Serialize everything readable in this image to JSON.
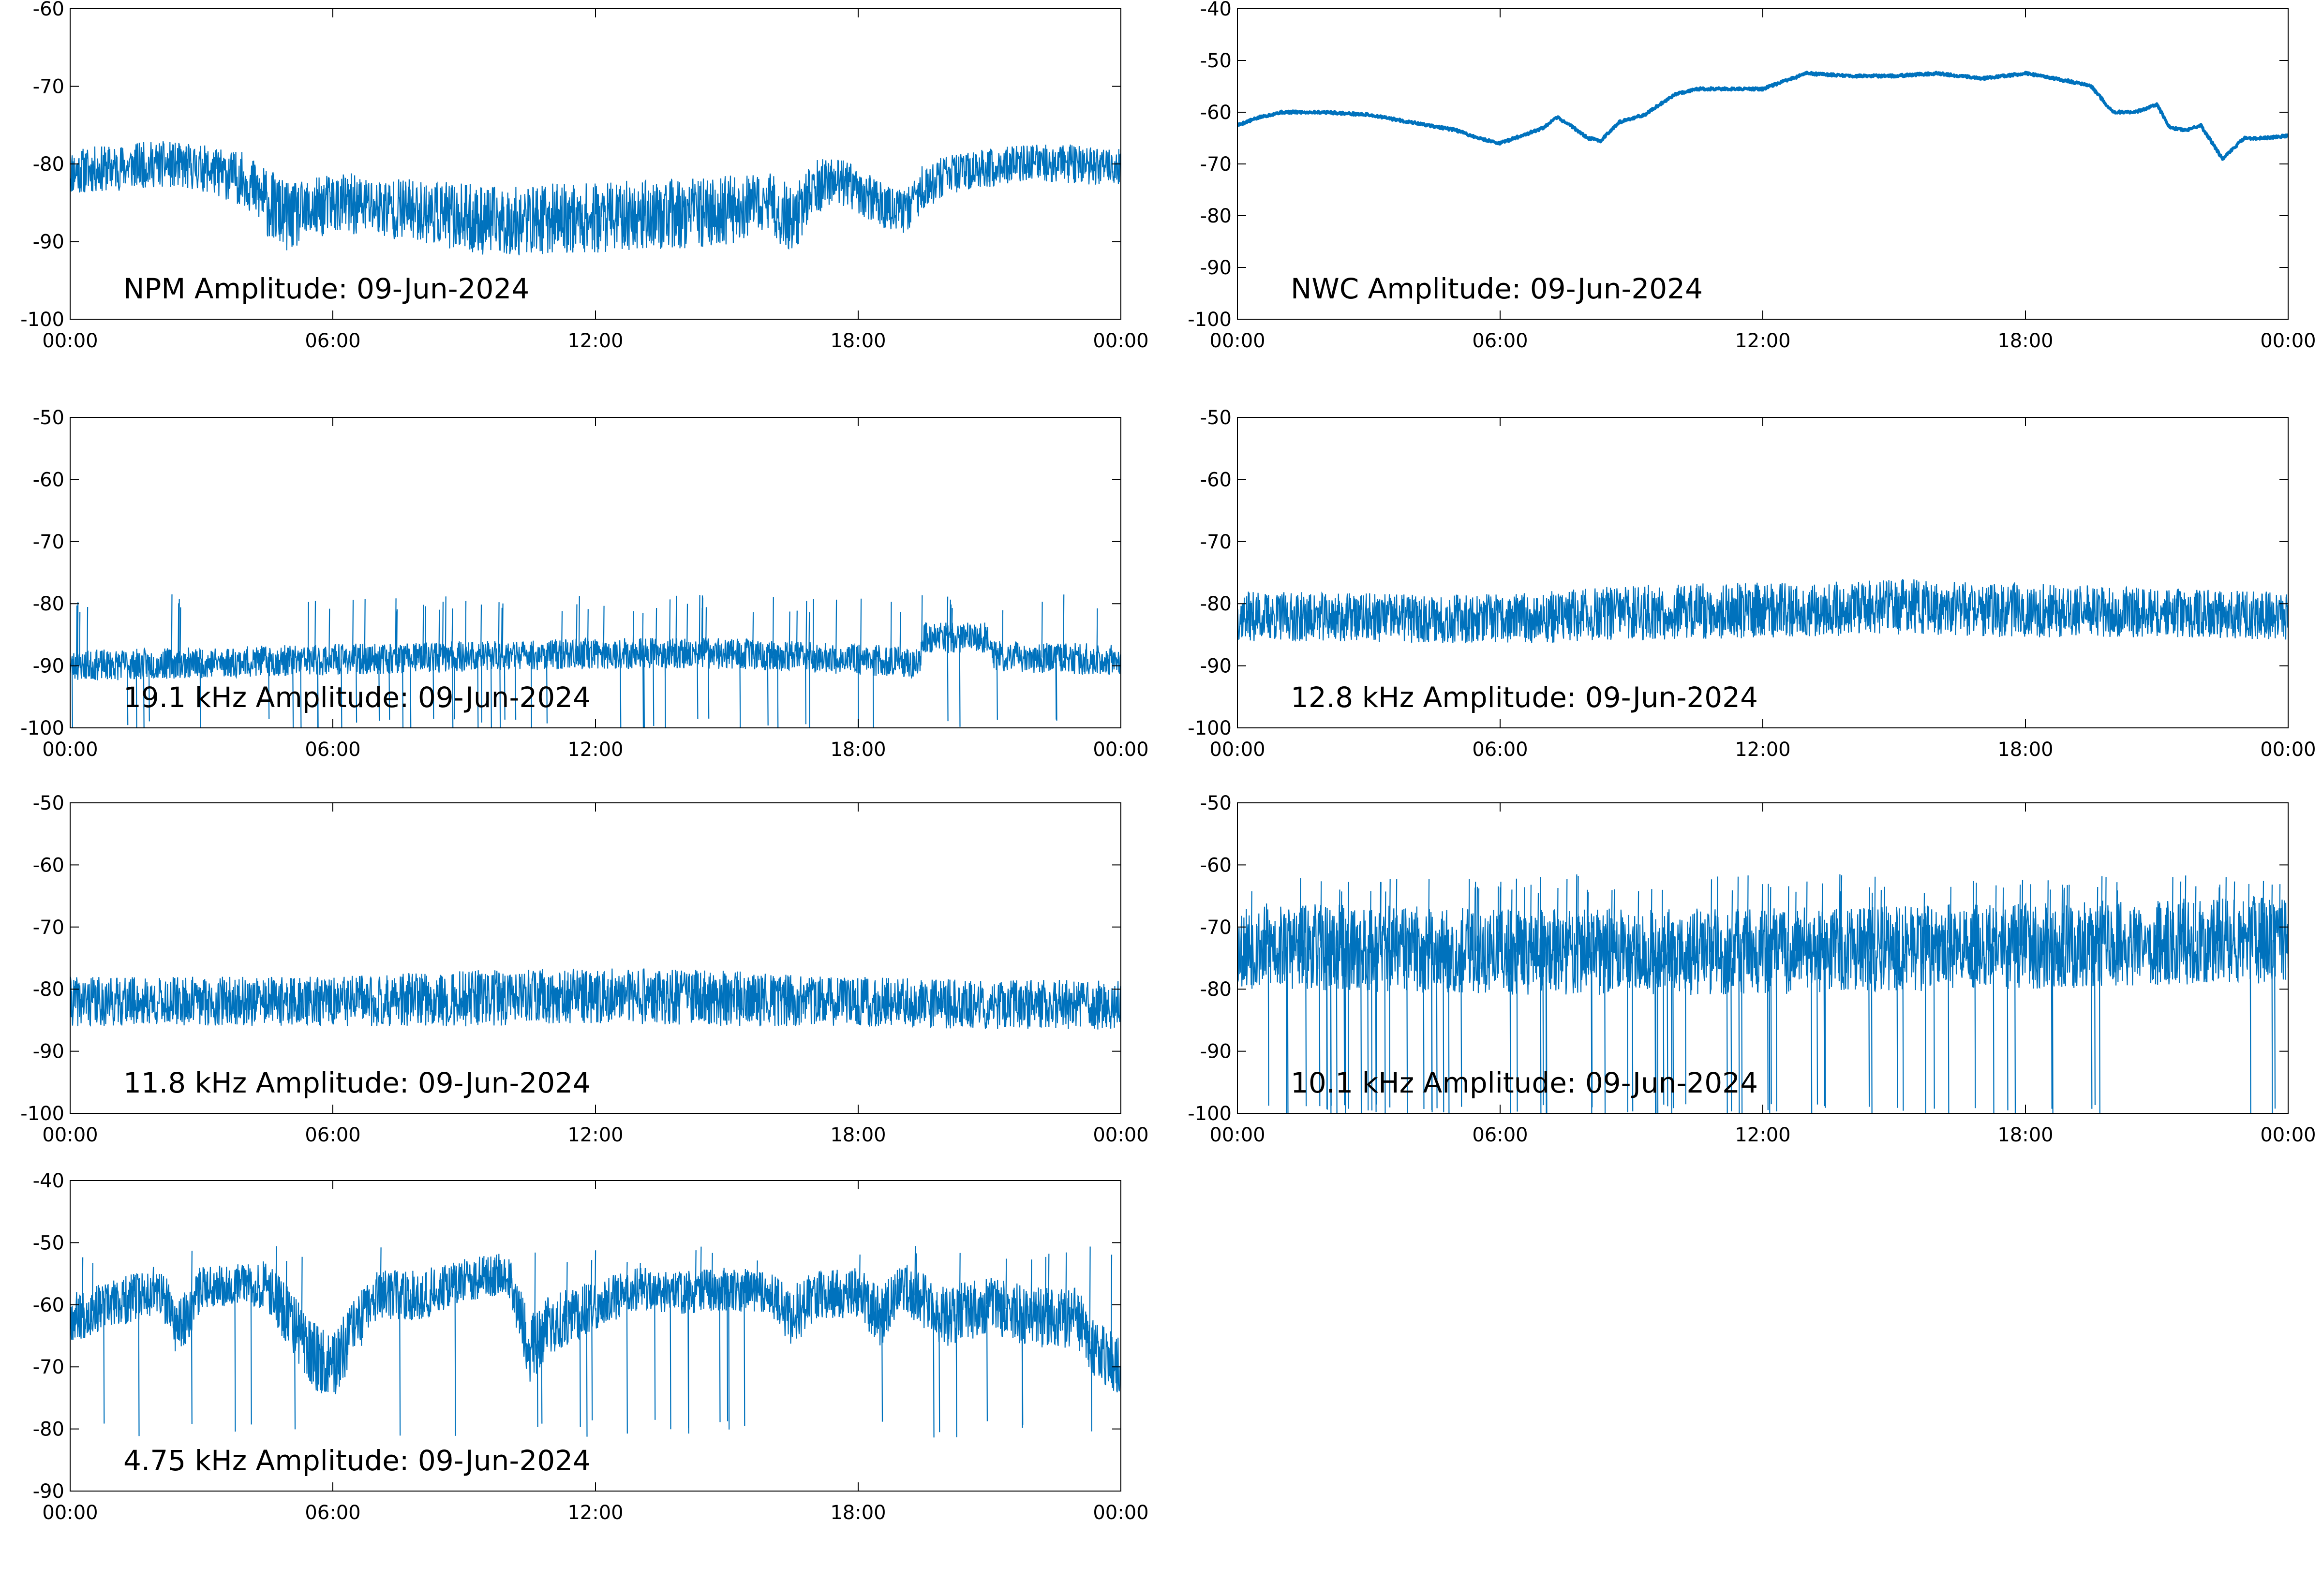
{
  "colors": {
    "series": "#0072bd",
    "axes": "#000000",
    "background": "#ffffff"
  },
  "chart_data": [
    {
      "type": "line",
      "title": "NPM Amplitude: 09-Jun-2024",
      "xticks": [
        "00:00",
        "06:00",
        "12:00",
        "18:00",
        "00:00"
      ],
      "yticks": [
        -60,
        -70,
        -80,
        -90,
        -100
      ],
      "ylim": [
        -100,
        -60
      ],
      "xlim": [
        0,
        24
      ],
      "grid": false,
      "series": [
        {
          "style": "dense",
          "x": [
            0,
            1,
            2,
            3,
            4,
            4.5,
            5,
            5.5,
            6,
            7,
            8,
            9,
            10,
            11,
            12,
            13,
            14,
            15,
            15.5,
            16,
            16.5,
            17,
            17.5,
            18,
            18.5,
            19,
            19.5,
            20,
            20.5,
            21,
            21.5,
            22,
            23,
            24
          ],
          "center": [
            -81,
            -80.5,
            -80,
            -80.5,
            -82,
            -85,
            -87,
            -86,
            -85,
            -85.5,
            -86,
            -87,
            -87.5,
            -87,
            -87,
            -86.5,
            -86.5,
            -86,
            -85.5,
            -85,
            -87.5,
            -83,
            -82,
            -83.5,
            -85,
            -86.5,
            -83,
            -81.5,
            -81,
            -80.5,
            -80,
            -80,
            -80,
            -80.5
          ],
          "spread": [
            3,
            3,
            3,
            3,
            3.5,
            4.5,
            4.5,
            4,
            4,
            4,
            4,
            4.5,
            4.5,
            4.5,
            4.5,
            4.5,
            4.5,
            4.5,
            4,
            4,
            4.5,
            3.5,
            3,
            3,
            3,
            3,
            3,
            2.5,
            2.5,
            2.5,
            2.5,
            2.5,
            2.5,
            2.5
          ],
          "seed": 11
        }
      ]
    },
    {
      "type": "line",
      "title": "NWC Amplitude: 09-Jun-2024",
      "xticks": [
        "00:00",
        "06:00",
        "12:00",
        "18:00",
        "00:00"
      ],
      "yticks": [
        -40,
        -50,
        -60,
        -70,
        -80,
        -90,
        -100
      ],
      "ylim": [
        -100,
        -40
      ],
      "xlim": [
        0,
        24
      ],
      "grid": false,
      "series": [
        {
          "style": "thick",
          "x": [
            0,
            0.5,
            1,
            2,
            3,
            4,
            5,
            5.5,
            6,
            6.5,
            7,
            7.3,
            7.6,
            8,
            8.3,
            8.7,
            9.3,
            10,
            10.5,
            11,
            12,
            12.5,
            13,
            14,
            15,
            16,
            17,
            18,
            19,
            19.5,
            20,
            20.5,
            21,
            21.3,
            21.7,
            22,
            22.5,
            23,
            23.5,
            24
          ],
          "y": [
            -62.5,
            -61,
            -60,
            -60,
            -60.5,
            -62,
            -63.5,
            -65,
            -66,
            -64.5,
            -63,
            -61,
            -62.5,
            -65,
            -65.5,
            -62,
            -60.5,
            -56.5,
            -55.5,
            -55.5,
            -55.5,
            -54,
            -52.5,
            -53,
            -53,
            -52.5,
            -53.5,
            -52.5,
            -54,
            -55,
            -60,
            -60,
            -58.5,
            -63,
            -63.5,
            -62.5,
            -69,
            -65,
            -65,
            -64.5
          ],
          "spread": 0.5,
          "seed": 5
        }
      ]
    },
    {
      "type": "line",
      "title": "19.1 kHz Amplitude: 09-Jun-2024",
      "xticks": [
        "00:00",
        "06:00",
        "12:00",
        "18:00",
        "00:00"
      ],
      "yticks": [
        -50,
        -60,
        -70,
        -80,
        -90,
        -100
      ],
      "ylim": [
        -100,
        -50
      ],
      "xlim": [
        0,
        24
      ],
      "grid": false,
      "series": [
        {
          "style": "dense",
          "x": [
            0,
            3,
            6,
            9,
            12,
            15,
            18,
            19.4,
            19.5,
            21,
            21.1,
            24
          ],
          "center": [
            -90,
            -89.5,
            -89,
            -88.5,
            -88,
            -88,
            -89,
            -89.5,
            -85.5,
            -85.5,
            -88.5,
            -89
          ],
          "spread": [
            2.5,
            2.5,
            2.5,
            2.5,
            2.5,
            2.5,
            2.5,
            2.5,
            2.5,
            2.5,
            2.5,
            2.5
          ],
          "spikes": 110,
          "spike_to": [
            -80,
            -100
          ],
          "seed": 23
        }
      ]
    },
    {
      "type": "line",
      "title": "12.8 kHz Amplitude: 09-Jun-2024",
      "xticks": [
        "00:00",
        "06:00",
        "12:00",
        "18:00",
        "00:00"
      ],
      "yticks": [
        -50,
        -60,
        -70,
        -80,
        -90,
        -100
      ],
      "ylim": [
        -100,
        -50
      ],
      "xlim": [
        0,
        24
      ],
      "grid": false,
      "series": [
        {
          "style": "dense",
          "x": [
            0,
            6,
            9,
            12,
            15,
            18,
            21,
            24
          ],
          "center": [
            -82,
            -82.5,
            -81.5,
            -81,
            -80.5,
            -81,
            -81.5,
            -82
          ],
          "spread": [
            4,
            4,
            4.5,
            4.5,
            4.5,
            4.5,
            4,
            4
          ],
          "seed": 37
        }
      ]
    },
    {
      "type": "line",
      "title": "11.8 kHz Amplitude: 09-Jun-2024",
      "xticks": [
        "00:00",
        "06:00",
        "12:00",
        "18:00",
        "00:00"
      ],
      "yticks": [
        -50,
        -60,
        -70,
        -80,
        -90,
        -100
      ],
      "ylim": [
        -100,
        -50
      ],
      "xlim": [
        0,
        24
      ],
      "grid": false,
      "series": [
        {
          "style": "dense",
          "x": [
            0,
            6,
            9,
            12,
            15,
            18,
            21,
            24
          ],
          "center": [
            -82,
            -82,
            -81.5,
            -81,
            -81.5,
            -82,
            -82.5,
            -82.5
          ],
          "spread": [
            4,
            4,
            4.5,
            4.5,
            4.5,
            4,
            4,
            4
          ],
          "seed": 41
        }
      ]
    },
    {
      "type": "line",
      "title": "10.1 kHz Amplitude: 09-Jun-2024",
      "xticks": [
        "00:00",
        "06:00",
        "12:00",
        "18:00",
        "00:00"
      ],
      "yticks": [
        -50,
        -60,
        -70,
        -80,
        -90,
        -100
      ],
      "ylim": [
        -100,
        -50
      ],
      "xlim": [
        0,
        24
      ],
      "grid": false,
      "series": [
        {
          "style": "dense",
          "x": [
            0,
            6,
            12,
            18,
            24
          ],
          "center": [
            -73,
            -74,
            -74,
            -73,
            -72
          ],
          "spread": [
            7,
            7,
            7,
            7,
            7
          ],
          "spikes": 170,
          "spike_to": [
            -63,
            -100
          ],
          "seed": 53
        }
      ]
    },
    {
      "type": "line",
      "title": "4.75 kHz Amplitude: 09-Jun-2024",
      "xticks": [
        "00:00",
        "06:00",
        "12:00",
        "18:00",
        "00:00"
      ],
      "yticks": [
        -40,
        -50,
        -60,
        -70,
        -80,
        -90
      ],
      "ylim": [
        -90,
        -40
      ],
      "xlim": [
        0,
        24
      ],
      "grid": false,
      "series": [
        {
          "style": "dense",
          "x": [
            0,
            1,
            2,
            2.5,
            3,
            4,
            4.5,
            5,
            5.5,
            6,
            6.5,
            7,
            8,
            9,
            10,
            10.5,
            11,
            12,
            13,
            14,
            15,
            16,
            16.5,
            17,
            18,
            18.5,
            19,
            20,
            21,
            22,
            23,
            23.5,
            24
          ],
          "center": [
            -62,
            -60,
            -57.5,
            -64,
            -57,
            -56.5,
            -57,
            -62,
            -68,
            -70,
            -64,
            -58.5,
            -58.5,
            -56,
            -55,
            -67,
            -63,
            -60,
            -57.5,
            -58,
            -57.5,
            -58,
            -62,
            -58.5,
            -58,
            -62,
            -57,
            -62,
            -60,
            -62,
            -62,
            -68,
            -70
          ],
          "spread": [
            4,
            4,
            4,
            5,
            3.5,
            3.5,
            4,
            5,
            5.5,
            5.5,
            5,
            4,
            4,
            3.5,
            3.5,
            5.5,
            5,
            4,
            3.5,
            3.5,
            3.5,
            3.5,
            5,
            4,
            4,
            5,
            4,
            5,
            4.5,
            5,
            5,
            5,
            5
          ],
          "spikes": 60,
          "spike_to": [
            -52,
            -80
          ],
          "seed": 67
        }
      ]
    }
  ]
}
